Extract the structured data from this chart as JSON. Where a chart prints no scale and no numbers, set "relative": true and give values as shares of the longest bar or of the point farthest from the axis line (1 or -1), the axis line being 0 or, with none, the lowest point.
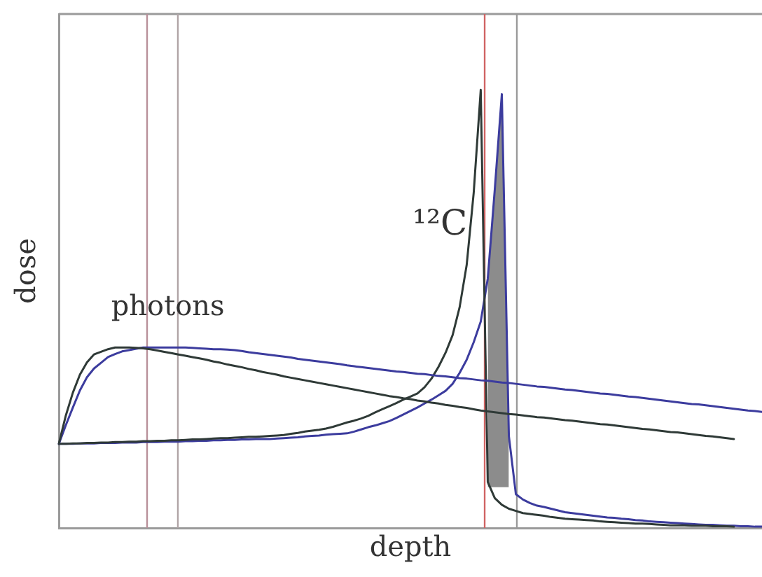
{
  "chart_data": {
    "type": "line",
    "relative": true,
    "xlabel": "depth",
    "ylabel": "dose",
    "tick_labels": false,
    "marker": "none",
    "line_style": "solid",
    "categories": [
      null,
      null,
      null,
      null,
      null,
      null,
      null,
      null,
      null,
      null,
      null,
      null,
      null,
      null,
      null,
      null,
      null,
      null,
      null,
      null,
      null,
      null,
      null,
      null,
      null,
      null,
      null,
      null,
      null,
      null,
      null,
      null,
      null,
      null,
      null,
      null,
      null,
      null,
      null,
      null,
      null,
      null,
      null,
      null,
      null,
      null,
      null,
      null,
      null,
      null,
      null,
      null,
      null,
      null,
      null,
      null,
      null,
      null,
      null,
      null,
      null,
      null,
      null,
      null,
      null,
      null,
      null,
      null,
      null,
      null,
      null,
      null,
      null,
      null,
      null,
      null,
      null,
      null,
      null,
      null,
      null,
      null,
      null,
      null,
      null,
      null,
      null,
      null,
      null,
      null,
      null,
      null,
      null,
      null,
      null,
      null,
      null,
      null,
      null,
      null,
      null
    ],
    "series": [
      {
        "color": "#2f3a37",
        "values": [
          0.192,
          0.257,
          0.309,
          0.35,
          0.378,
          0.396,
          0.402,
          0.408,
          0.412,
          0.412,
          0.412,
          0.411,
          0.41,
          0.408,
          0.405,
          0.402,
          0.399,
          0.396,
          0.393,
          0.39,
          0.387,
          0.384,
          0.38,
          0.377,
          0.373,
          0.37,
          0.367,
          0.363,
          0.36,
          0.356,
          0.353,
          0.35,
          0.346,
          0.343,
          0.34,
          0.337,
          0.334,
          0.331,
          0.328,
          0.325,
          0.322,
          0.319,
          0.316,
          0.313,
          0.31,
          0.307,
          0.304,
          0.301,
          0.299,
          0.296,
          0.294,
          0.291,
          0.289,
          0.286,
          0.284,
          0.281,
          0.279,
          0.276,
          0.274,
          0.271,
          0.268,
          0.266,
          0.264,
          0.262,
          0.26,
          0.259,
          0.257,
          0.255,
          0.253,
          0.252,
          0.25,
          0.248,
          0.246,
          0.245,
          0.243,
          0.241,
          0.239,
          0.237,
          0.236,
          0.234,
          0.232,
          0.23,
          0.228,
          0.226,
          0.225,
          0.223,
          0.221,
          0.219,
          0.218,
          0.216,
          0.214,
          0.212,
          0.21,
          0.209,
          0.207,
          0.205,
          0.203,
          null,
          null,
          null,
          null
        ]
      },
      {
        "color": "#3c3c9e",
        "values": [
          0.192,
          0.235,
          0.275,
          0.314,
          0.344,
          0.364,
          0.377,
          0.39,
          0.397,
          0.403,
          0.406,
          0.409,
          0.412,
          0.412,
          0.412,
          0.412,
          0.412,
          0.412,
          0.412,
          0.411,
          0.41,
          0.409,
          0.408,
          0.408,
          0.407,
          0.406,
          0.404,
          0.401,
          0.399,
          0.397,
          0.395,
          0.393,
          0.391,
          0.389,
          0.386,
          0.384,
          0.382,
          0.38,
          0.378,
          0.376,
          0.374,
          0.371,
          0.369,
          0.367,
          0.365,
          0.363,
          0.361,
          0.359,
          0.357,
          0.356,
          0.354,
          0.352,
          0.351,
          0.349,
          0.347,
          0.346,
          0.344,
          0.342,
          0.341,
          0.339,
          0.337,
          0.336,
          0.334,
          0.332,
          0.331,
          0.329,
          0.327,
          0.325,
          0.323,
          0.322,
          0.32,
          0.318,
          0.316,
          0.315,
          0.313,
          0.311,
          0.309,
          0.307,
          0.306,
          0.304,
          0.302,
          0.3,
          0.299,
          0.297,
          0.295,
          0.293,
          0.291,
          0.289,
          0.287,
          0.285,
          0.283,
          0.282,
          0.28,
          0.278,
          0.276,
          0.274,
          0.272,
          0.27,
          0.268,
          0.267,
          0.265
        ]
      },
      {
        "color": "#2f3a37",
        "values": [
          0.192,
          0.192,
          0.193,
          0.193,
          0.194,
          0.194,
          0.195,
          0.195,
          0.196,
          0.196,
          0.197,
          0.197,
          0.198,
          0.198,
          0.199,
          0.199,
          0.2,
          0.2,
          0.201,
          0.202,
          0.202,
          0.203,
          0.204,
          0.205,
          0.205,
          0.206,
          0.207,
          0.208,
          0.208,
          0.209,
          0.21,
          0.211,
          0.212,
          0.215,
          0.217,
          0.22,
          0.222,
          0.224,
          0.227,
          0.231,
          0.236,
          0.241,
          0.245,
          0.25,
          0.256,
          0.264,
          0.271,
          0.278,
          0.285,
          0.293,
          0.3,
          0.307,
          0.321,
          0.341,
          0.368,
          0.4,
          0.44,
          0.504,
          0.6,
          0.765,
          1,
          0.105,
          0.068,
          0.053,
          0.044,
          0.039,
          0.034,
          0.032,
          0.03,
          0.028,
          0.025,
          0.023,
          0.021,
          0.02,
          0.019,
          0.018,
          0.017,
          0.015,
          0.014,
          0.013,
          0.012,
          0.011,
          0.01,
          0.01,
          0.009,
          0.008,
          0.007,
          0.006,
          0.006,
          0.006,
          0.005,
          0.005,
          0.005,
          0.004,
          0.004,
          0.004,
          0.003,
          null,
          null,
          null,
          null
        ]
      },
      {
        "color": "#3c3c9e",
        "values": [
          0.192,
          0.192,
          0.192,
          0.193,
          0.193,
          0.193,
          0.194,
          0.194,
          0.194,
          0.195,
          0.195,
          0.195,
          0.196,
          0.196,
          0.196,
          0.197,
          0.197,
          0.197,
          0.198,
          0.198,
          0.199,
          0.199,
          0.2,
          0.2,
          0.201,
          0.201,
          0.202,
          0.202,
          0.203,
          0.203,
          0.203,
          0.204,
          0.205,
          0.206,
          0.207,
          0.209,
          0.21,
          0.211,
          0.213,
          0.214,
          0.215,
          0.216,
          0.22,
          0.225,
          0.23,
          0.234,
          0.239,
          0.244,
          0.251,
          0.259,
          0.267,
          0.275,
          0.284,
          0.293,
          0.303,
          0.313,
          0.329,
          0.354,
          0.384,
          0.424,
          0.471,
          0.569,
          0.773,
          0.99,
          0.21,
          0.077,
          0.065,
          0.057,
          0.051,
          0.048,
          0.044,
          0.04,
          0.036,
          0.034,
          0.032,
          0.03,
          0.028,
          0.026,
          0.024,
          0.023,
          0.021,
          0.02,
          0.018,
          0.017,
          0.015,
          0.014,
          0.013,
          0.012,
          0.011,
          0.01,
          0.009,
          0.008,
          0.007,
          0.007,
          0.006,
          0.005,
          0.005,
          0.004,
          0.004,
          0.003,
          0.003
        ],
        "lower": [
          null,
          null,
          null,
          null,
          null,
          null,
          null,
          null,
          null,
          null,
          null,
          null,
          null,
          null,
          null,
          null,
          null,
          null,
          null,
          null,
          null,
          null,
          null,
          null,
          null,
          null,
          null,
          null,
          null,
          null,
          null,
          null,
          null,
          null,
          null,
          null,
          null,
          null,
          null,
          null,
          null,
          null,
          null,
          null,
          null,
          null,
          null,
          null,
          null,
          null,
          null,
          null,
          null,
          null,
          null,
          null,
          null,
          null,
          null,
          null,
          null,
          0.093,
          0.093,
          0.093,
          0.093,
          null,
          null,
          null,
          null,
          null,
          null,
          null,
          null,
          null,
          null,
          null,
          null,
          null,
          null,
          null,
          null,
          null,
          null,
          null,
          null,
          null,
          null,
          null,
          null,
          null,
          null,
          null,
          null,
          null,
          null,
          null,
          null,
          null,
          null,
          null,
          null
        ],
        "upper": [
          null,
          null,
          null,
          null,
          null,
          null,
          null,
          null,
          null,
          null,
          null,
          null,
          null,
          null,
          null,
          null,
          null,
          null,
          null,
          null,
          null,
          null,
          null,
          null,
          null,
          null,
          null,
          null,
          null,
          null,
          null,
          null,
          null,
          null,
          null,
          null,
          null,
          null,
          null,
          null,
          null,
          null,
          null,
          null,
          null,
          null,
          null,
          null,
          null,
          null,
          null,
          null,
          null,
          null,
          null,
          null,
          null,
          null,
          null,
          null,
          null,
          0.569,
          0.773,
          0.99,
          0.21,
          null,
          null,
          null,
          null,
          null,
          null,
          null,
          null,
          null,
          null,
          null,
          null,
          null,
          null,
          null,
          null,
          null,
          null,
          null,
          null,
          null,
          null,
          null,
          null,
          null,
          null,
          null,
          null,
          null,
          null,
          null,
          null,
          null,
          null,
          null,
          null
        ]
      }
    ],
    "annotations": [
      "photons",
      "¹²C"
    ]
  }
}
